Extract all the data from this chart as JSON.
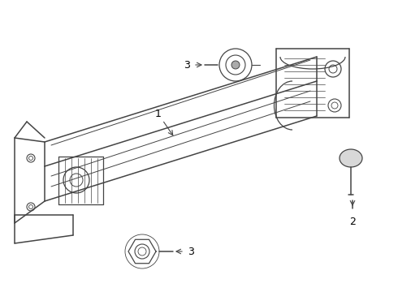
{
  "background_color": "#ffffff",
  "line_color": "#444444",
  "label_color": "#000000",
  "fig_w": 4.9,
  "fig_h": 3.6,
  "dpi": 100
}
